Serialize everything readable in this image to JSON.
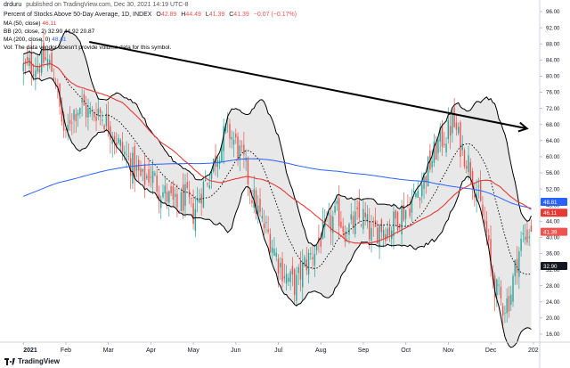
{
  "header": {
    "author": "drduru",
    "published": "published on TradingView.com, Dec 30, 2021 14:19 UTC-8",
    "symbol_title": "Percent of Stocks Above 50-Day Average, 1D, INDEX",
    "ohlc": {
      "o_label": "O",
      "o": "42.89",
      "h_label": "H",
      "h": "44.49",
      "l_label": "L",
      "l": "41.39",
      "c_label": "C",
      "c": "41.39",
      "chg": "−0.07 (−0.17%)"
    },
    "legend": [
      {
        "label": "MA (50, close)",
        "value": "46.11",
        "color": "#e53935"
      },
      {
        "label": "BB (20, close, 2)",
        "value": "32.90  44.92  20.87",
        "color": "#131722"
      },
      {
        "label": "MA (200, close, 0)",
        "value": "48.81",
        "color": "#2962ff"
      },
      {
        "label": "Vol: The data vendor doesn't provide volume data for this symbol.",
        "value": "",
        "color": "#131722"
      }
    ]
  },
  "footer": {
    "logo_text": "TradingView"
  },
  "colors": {
    "up": "#26a69a",
    "down": "#ef5350",
    "ma50": "#e53935",
    "ma200": "#2962ff",
    "bb": "#000000",
    "bb_fill": "#e0e0e0",
    "trendline": "#000000",
    "price_tag": "#ef5350",
    "ma50_tag": "#e53935",
    "ma200_tag": "#2962ff",
    "bb_tag": "#131722"
  },
  "chart_data": {
    "type": "candlestick",
    "title": "Percent of Stocks Above 50-Day Average",
    "x_tick_labels": [
      "2021",
      "Feb",
      "Mar",
      "Apr",
      "May",
      "Jun",
      "Jul",
      "Aug",
      "Sep",
      "Oct",
      "Nov",
      "Dec",
      "202"
    ],
    "x_tick_months": [
      0,
      1,
      2,
      3,
      4,
      5,
      6,
      7,
      8,
      9,
      10,
      11,
      12
    ],
    "y_tick_labels": [
      "96.00",
      "92.00",
      "88.00",
      "84.00",
      "80.00",
      "76.00",
      "72.00",
      "68.00",
      "64.00",
      "60.00",
      "56.00",
      "52.00",
      "48.00",
      "44.00",
      "40.00",
      "36.00",
      "32.00",
      "28.00",
      "24.00",
      "20.00",
      "16.00"
    ],
    "ylim": [
      14,
      98
    ],
    "xlim_months": [
      -0.55,
      12.15
    ],
    "close_keypoints": [
      [
        0,
        82
      ],
      [
        0.3,
        83
      ],
      [
        0.55,
        84
      ],
      [
        0.75,
        80
      ],
      [
        0.85,
        72
      ],
      [
        1.0,
        64
      ],
      [
        1.1,
        70
      ],
      [
        1.35,
        73
      ],
      [
        1.6,
        70
      ],
      [
        1.75,
        72
      ],
      [
        2.0,
        68
      ],
      [
        2.3,
        62
      ],
      [
        2.55,
        58
      ],
      [
        2.8,
        54
      ],
      [
        3.0,
        56
      ],
      [
        3.2,
        52
      ],
      [
        3.4,
        50
      ],
      [
        3.6,
        47
      ],
      [
        3.8,
        50
      ],
      [
        4.0,
        46
      ],
      [
        4.2,
        52
      ],
      [
        4.4,
        56
      ],
      [
        4.6,
        62
      ],
      [
        4.8,
        67
      ],
      [
        5.0,
        63
      ],
      [
        5.2,
        58
      ],
      [
        5.4,
        50
      ],
      [
        5.6,
        44
      ],
      [
        5.8,
        40
      ],
      [
        6.0,
        34
      ],
      [
        6.2,
        30
      ],
      [
        6.4,
        28
      ],
      [
        6.6,
        33
      ],
      [
        6.8,
        36
      ],
      [
        7.0,
        40
      ],
      [
        7.2,
        43
      ],
      [
        7.4,
        46
      ],
      [
        7.6,
        41
      ],
      [
        7.8,
        44
      ],
      [
        8.0,
        45
      ],
      [
        8.2,
        40
      ],
      [
        8.4,
        43
      ],
      [
        8.6,
        42
      ],
      [
        8.8,
        45
      ],
      [
        9.0,
        47
      ],
      [
        9.2,
        50
      ],
      [
        9.4,
        54
      ],
      [
        9.6,
        59
      ],
      [
        9.8,
        64
      ],
      [
        10.0,
        66
      ],
      [
        10.1,
        69
      ],
      [
        10.25,
        64
      ],
      [
        10.5,
        58
      ],
      [
        10.7,
        50
      ],
      [
        10.9,
        41
      ],
      [
        11.0,
        32
      ],
      [
        11.15,
        26
      ],
      [
        11.3,
        23
      ],
      [
        11.45,
        25
      ],
      [
        11.6,
        34
      ],
      [
        11.75,
        40
      ],
      [
        11.95,
        41.39
      ]
    ],
    "series": [
      {
        "name": "MA (50, close)",
        "last_value": 46.11
      },
      {
        "name": "BB (20, close, 2)",
        "basis": 32.9,
        "upper": 44.92,
        "lower": 20.87
      },
      {
        "name": "MA (200, close, 0)",
        "last_value": 48.81
      }
    ],
    "last": {
      "open": 42.89,
      "high": 44.49,
      "low": 41.39,
      "close": 41.39,
      "change": -0.07,
      "change_pct": -0.17
    },
    "trendline": {
      "from": [
        1.55,
        88.5
      ],
      "to": [
        11.85,
        67
      ]
    },
    "price_tags": [
      {
        "series": "MA (50, close)",
        "value": "46.11"
      },
      {
        "series": "price",
        "value": "41.39"
      },
      {
        "series": "MA (200, close, 0)",
        "value": "48.81"
      },
      {
        "series": "BB (20, close, 2)",
        "value": "32.90"
      }
    ]
  }
}
